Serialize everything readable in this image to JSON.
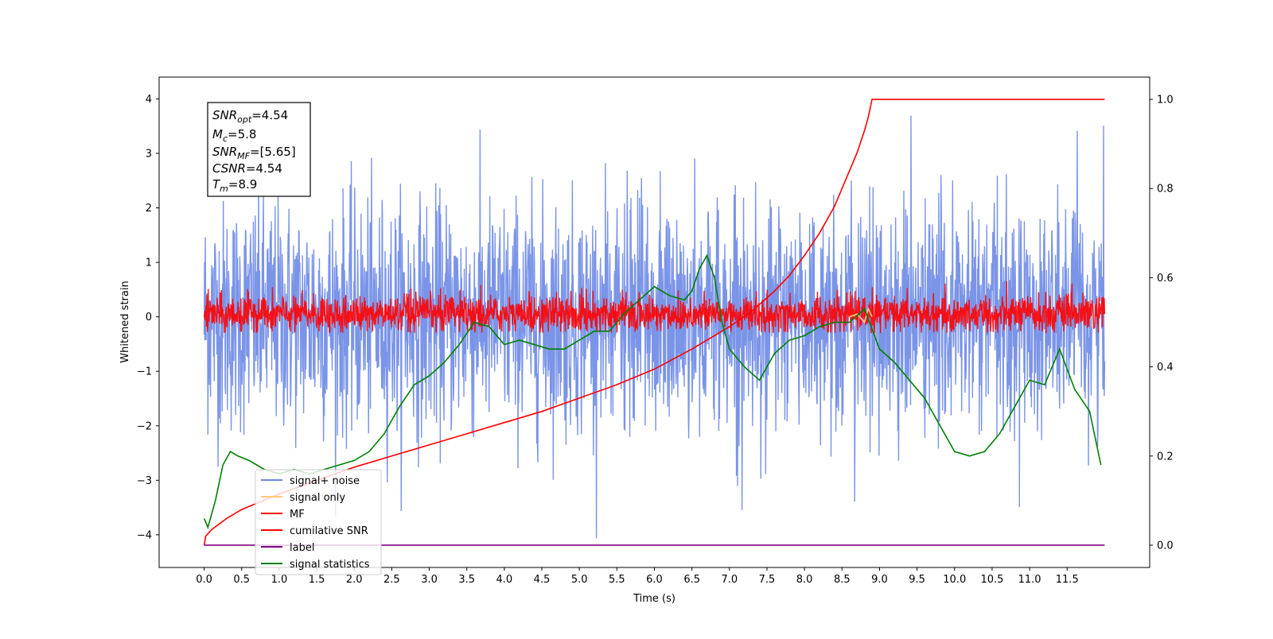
{
  "chart_data": {
    "type": "line",
    "xlabel": "Time (s)",
    "ylabel": "Whitened strain",
    "xlim": [
      -0.6,
      12.6
    ],
    "ylim": [
      -4.6,
      4.4
    ],
    "y2lim": [
      -0.05,
      1.05
    ],
    "x_ticks": [
      "0.0",
      "0.5",
      "1.0",
      "1.5",
      "2.0",
      "2.5",
      "3.0",
      "3.5",
      "4.0",
      "4.5",
      "5.0",
      "5.5",
      "6.0",
      "6.5",
      "7.0",
      "7.5",
      "8.0",
      "8.5",
      "9.0",
      "9.5",
      "10.0",
      "10.5",
      "11.0",
      "11.5"
    ],
    "y_ticks": [
      "4",
      "3",
      "2",
      "1",
      "0",
      "−1",
      "−2",
      "−3",
      "−4"
    ],
    "y2_ticks": [
      "1.0",
      "0.8",
      "0.6",
      "0.4",
      "0.2",
      "0.0"
    ],
    "legend": {
      "placement": "lower-left",
      "entries": [
        {
          "label": "signal+ noise",
          "color": "#6b88e6"
        },
        {
          "label": "signal only",
          "color": "#ffc97a"
        },
        {
          "label": "MF",
          "color": "#ff0000"
        },
        {
          "label": "cumilative SNR",
          "color": "#ff0000"
        },
        {
          "label": "label",
          "color": "#800080"
        },
        {
          "label": "signal statistics",
          "color": "#008000"
        }
      ]
    },
    "info_box": {
      "lines": [
        {
          "main": "SNR",
          "sub": "opt",
          "rest": "=4.54"
        },
        {
          "main": "M",
          "sub": "c",
          "rest": "=5.8"
        },
        {
          "main": "SNR",
          "sub": "MF",
          "rest": "=[5.65]"
        },
        {
          "main": "CSNR",
          "sub": "",
          "rest": "=4.54"
        },
        {
          "main": "T",
          "sub": "m",
          "rest": "=8.9"
        }
      ]
    },
    "series": [
      {
        "name": "signal+ noise",
        "color": "#6b88e6",
        "style": "noise",
        "x_range": [
          0.0,
          12.0
        ],
        "mean": 0.0,
        "std": 1.05,
        "samples": 2400,
        "min": -4.15,
        "max": 4.0
      },
      {
        "name": "signal only",
        "color": "#ffc97a",
        "x_range": [
          8.6,
          8.9
        ],
        "x": [
          8.6,
          8.7,
          8.8,
          8.85,
          8.9
        ],
        "y": [
          0.0,
          0.05,
          -0.1,
          0.15,
          0.0
        ]
      },
      {
        "name": "MF",
        "color": "#ff0000",
        "style": "noise",
        "x_range": [
          0.0,
          12.0
        ],
        "mean": 0.05,
        "std": 0.17,
        "samples": 2400,
        "min": -0.3,
        "max": 1.0
      },
      {
        "name": "cumilative SNR",
        "color": "#ff0000",
        "axis": "right",
        "x": [
          0.0,
          0.02,
          0.1,
          0.3,
          0.5,
          1.0,
          1.5,
          2.0,
          2.5,
          3.0,
          3.5,
          4.0,
          4.5,
          5.0,
          5.5,
          6.0,
          6.5,
          7.0,
          7.3,
          7.6,
          7.8,
          8.0,
          8.2,
          8.4,
          8.5,
          8.6,
          8.7,
          8.8,
          8.85,
          8.9,
          12.0
        ],
        "y": [
          0.0,
          0.02,
          0.035,
          0.06,
          0.08,
          0.115,
          0.145,
          0.175,
          0.2,
          0.225,
          0.25,
          0.275,
          0.3,
          0.33,
          0.36,
          0.395,
          0.44,
          0.49,
          0.525,
          0.57,
          0.605,
          0.65,
          0.7,
          0.76,
          0.8,
          0.84,
          0.88,
          0.93,
          0.96,
          1.0,
          1.0
        ]
      },
      {
        "name": "label",
        "color": "#800080",
        "axis": "right",
        "x": [
          0.0,
          12.0
        ],
        "y": [
          0.0,
          0.0
        ]
      },
      {
        "name": "signal statistics",
        "color": "#008000",
        "axis": "right",
        "x": [
          0.0,
          0.05,
          0.15,
          0.25,
          0.35,
          0.45,
          0.6,
          0.8,
          1.0,
          1.2,
          1.4,
          1.6,
          1.8,
          2.0,
          2.2,
          2.4,
          2.6,
          2.8,
          3.0,
          3.2,
          3.4,
          3.6,
          3.8,
          4.0,
          4.2,
          4.4,
          4.6,
          4.8,
          5.0,
          5.2,
          5.4,
          5.6,
          5.8,
          6.0,
          6.2,
          6.4,
          6.5,
          6.6,
          6.7,
          6.8,
          6.9,
          7.0,
          7.2,
          7.4,
          7.6,
          7.8,
          8.0,
          8.2,
          8.4,
          8.6,
          8.8,
          9.0,
          9.2,
          9.4,
          9.6,
          9.8,
          10.0,
          10.2,
          10.4,
          10.6,
          10.8,
          11.0,
          11.2,
          11.4,
          11.6,
          11.8,
          11.95
        ],
        "y": [
          0.06,
          0.04,
          0.1,
          0.18,
          0.21,
          0.2,
          0.19,
          0.17,
          0.16,
          0.17,
          0.16,
          0.17,
          0.18,
          0.19,
          0.21,
          0.25,
          0.31,
          0.36,
          0.38,
          0.41,
          0.45,
          0.5,
          0.49,
          0.45,
          0.46,
          0.45,
          0.44,
          0.44,
          0.46,
          0.48,
          0.48,
          0.52,
          0.55,
          0.58,
          0.56,
          0.55,
          0.57,
          0.62,
          0.65,
          0.6,
          0.5,
          0.44,
          0.4,
          0.37,
          0.43,
          0.46,
          0.47,
          0.49,
          0.5,
          0.5,
          0.53,
          0.44,
          0.41,
          0.37,
          0.33,
          0.27,
          0.21,
          0.2,
          0.21,
          0.25,
          0.31,
          0.37,
          0.36,
          0.44,
          0.35,
          0.3,
          0.18
        ]
      }
    ]
  }
}
